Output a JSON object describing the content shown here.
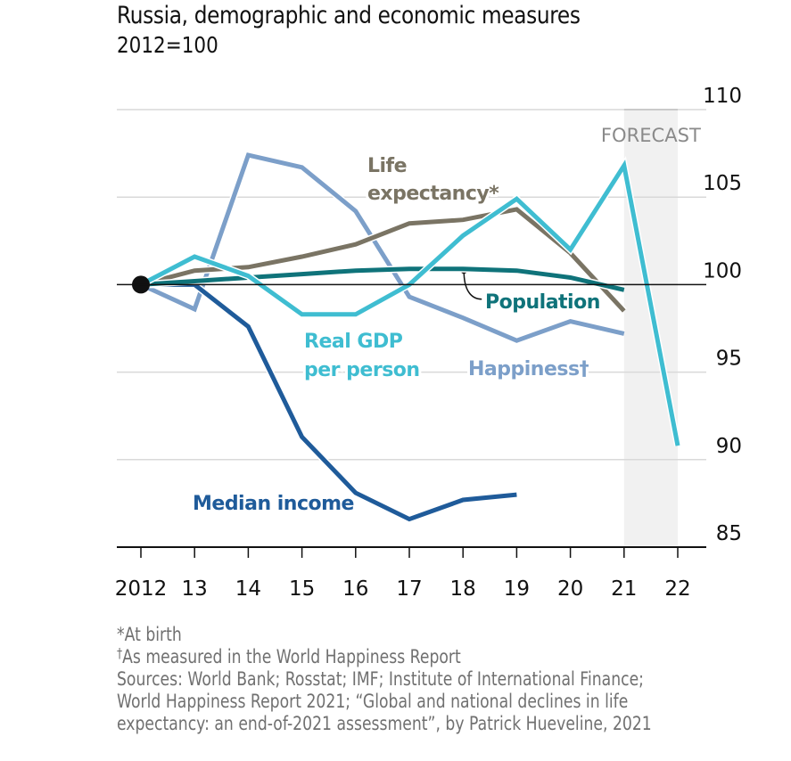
{
  "chart_data": {
    "type": "line",
    "title": "Russia, demographic and economic measures",
    "subtitle": "2012=100",
    "xlabel": "",
    "ylabel": "",
    "x": [
      2012,
      2013,
      2014,
      2015,
      2016,
      2017,
      2018,
      2019,
      2020,
      2021,
      2022
    ],
    "x_tick_labels": [
      "2012",
      "13",
      "14",
      "15",
      "16",
      "17",
      "18",
      "19",
      "20",
      "21",
      "22"
    ],
    "y_ticks": [
      85,
      90,
      95,
      100,
      105,
      110
    ],
    "y_tick_labels": [
      "85",
      "90",
      "95",
      "100",
      "105",
      "110"
    ],
    "ylim": [
      85,
      110
    ],
    "xlim": [
      2012,
      2022
    ],
    "grid": true,
    "y_axis_side": "right",
    "baseline": 100,
    "forecast_band": {
      "from": 2021,
      "to": 2022,
      "label": "FORECAST"
    },
    "start_marker": {
      "x": 2012,
      "y": 100
    },
    "series": [
      {
        "name": "Happiness",
        "label": "Happiness",
        "label_suffix": "†",
        "color": "#7c9fc9",
        "x": [
          2012,
          2013,
          2014,
          2015,
          2016,
          2017,
          2018,
          2019,
          2020,
          2021
        ],
        "values": [
          100,
          98.6,
          107.4,
          106.7,
          104.2,
          99.3,
          98.1,
          96.8,
          97.9,
          97.2
        ]
      },
      {
        "name": "Life expectancy",
        "label": "Life expectancy*",
        "color": "#7a7464",
        "x": [
          2012,
          2013,
          2014,
          2015,
          2016,
          2017,
          2018,
          2019,
          2020,
          2021
        ],
        "values": [
          100,
          100.8,
          101.0,
          101.6,
          102.3,
          103.5,
          103.7,
          104.3,
          101.8,
          98.5
        ]
      },
      {
        "name": "Population",
        "label": "Population",
        "color": "#0f737a",
        "x": [
          2012,
          2013,
          2014,
          2015,
          2016,
          2017,
          2018,
          2019,
          2020,
          2021
        ],
        "values": [
          100,
          100.2,
          100.4,
          100.6,
          100.8,
          100.9,
          100.9,
          100.8,
          100.4,
          99.7
        ]
      },
      {
        "name": "Real GDP per person",
        "label": "Real GDP per person",
        "color": "#3fbdd1",
        "x": [
          2012,
          2013,
          2014,
          2015,
          2016,
          2017,
          2018,
          2019,
          2020,
          2021,
          2022
        ],
        "values": [
          100,
          101.6,
          100.5,
          98.3,
          98.3,
          100.0,
          102.8,
          104.9,
          102.0,
          106.8,
          90.8
        ]
      },
      {
        "name": "Median income",
        "label": "Median income",
        "color": "#1f5b9a",
        "x": [
          2012,
          2013,
          2014,
          2015,
          2016,
          2017,
          2018,
          2019
        ],
        "values": [
          100,
          100,
          97.6,
          91.3,
          88.1,
          86.6,
          87.7,
          88.0
        ]
      }
    ],
    "annotations": [
      {
        "text_lines": [
          "Life",
          "expectancy*"
        ],
        "series": "Life expectancy"
      },
      {
        "text_lines": [
          "Population"
        ],
        "series": "Population",
        "connector_at": {
          "x": 2018,
          "y": 100.9
        }
      },
      {
        "text_lines": [
          "Real GDP",
          "per person"
        ],
        "series": "Real GDP per person"
      },
      {
        "text_lines": [
          "Happiness†"
        ],
        "series": "Happiness"
      },
      {
        "text_lines": [
          "Median income"
        ],
        "series": "Median income"
      }
    ]
  },
  "footnotes": {
    "note1": "*At birth",
    "note2_mark": "†",
    "note2": "As measured in the World Happiness Report",
    "sources_line1": "Sources: World Bank; Rosstat; IMF; Institute of International Finance;",
    "sources_line2": "World Happiness Report 2021; “Global and national declines in life",
    "sources_line3": "expectancy: an end-of-2021 assessment”, by Patrick Hueveline, 2021"
  }
}
